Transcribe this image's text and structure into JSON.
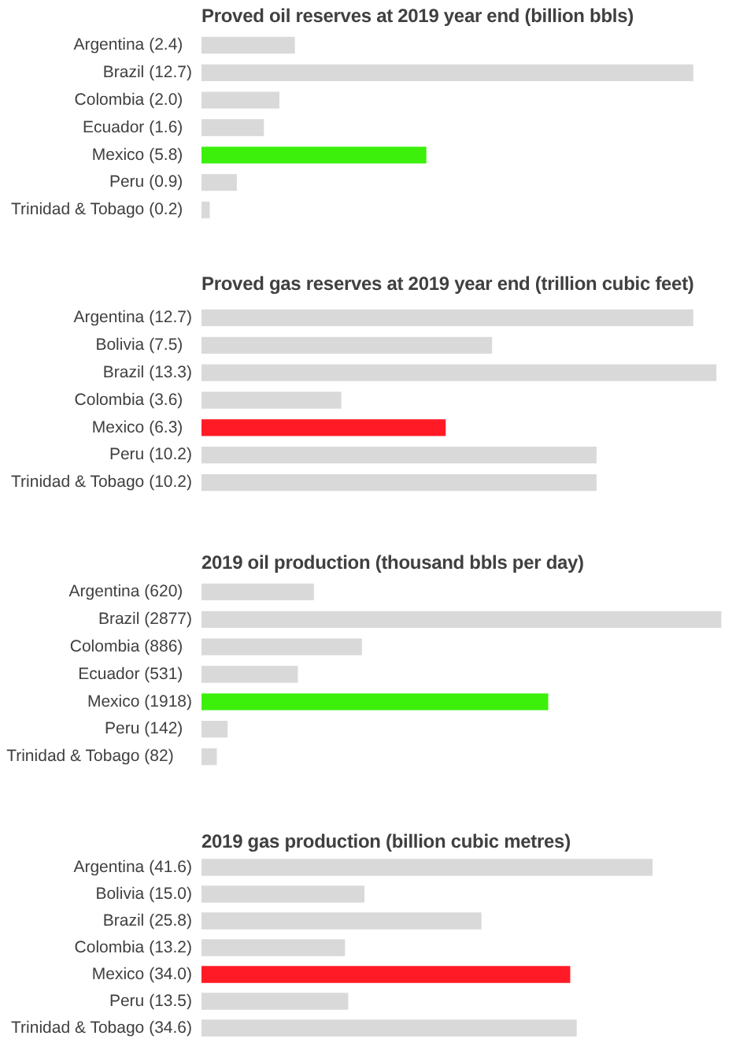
{
  "chart_data": [
    {
      "type": "bar",
      "orientation": "horizontal",
      "title": "Proved oil reserves at 2019 year end (billion bbls)",
      "categories": [
        "Argentina",
        "Brazil",
        "Colombia",
        "Ecuador",
        "Mexico",
        "Peru",
        "Trinidad & Tobago"
      ],
      "values": [
        2.4,
        12.7,
        2.0,
        1.6,
        5.8,
        0.9,
        0.2
      ],
      "value_labels": [
        "(2.4)",
        "(12.7)",
        "(2.0)",
        "(1.6)",
        "(5.8)",
        "(0.9)",
        "(0.2)"
      ],
      "colors": [
        "#d9d9d9",
        "#d9d9d9",
        "#d9d9d9",
        "#d9d9d9",
        "#3cf00c",
        "#d9d9d9",
        "#d9d9d9"
      ],
      "tick_labels": "y"
    },
    {
      "type": "bar",
      "orientation": "horizontal",
      "title": "Proved gas reserves at 2019 year end (trillion cubic feet)",
      "categories": [
        "Argentina",
        "Bolivia",
        "Brazil",
        "Colombia",
        "Mexico",
        "Peru",
        "Trinidad & Tobago"
      ],
      "values": [
        12.7,
        7.5,
        13.3,
        3.6,
        6.3,
        10.2,
        10.2
      ],
      "value_labels": [
        "(12.7)",
        "(7.5)",
        "(13.3)",
        "(3.6)",
        "(6.3)",
        "(10.2)",
        "(10.2)"
      ],
      "colors": [
        "#d9d9d9",
        "#d9d9d9",
        "#d9d9d9",
        "#d9d9d9",
        "#ff1a25",
        "#d9d9d9",
        "#d9d9d9"
      ],
      "tick_labels": "y"
    },
    {
      "type": "bar",
      "orientation": "horizontal",
      "title": "2019 oil production (thousand bbls per day)",
      "categories": [
        "Argentina",
        "Brazil",
        "Colombia",
        "Ecuador",
        "Mexico",
        "Peru",
        "Trinidad & Tobago"
      ],
      "values": [
        620,
        2877,
        886,
        531,
        1918,
        142,
        82
      ],
      "value_labels": [
        "(620)",
        "(2877)",
        "(886)",
        "(531)",
        "(1918)",
        "(142)",
        "(82)"
      ],
      "colors": [
        "#d9d9d9",
        "#d9d9d9",
        "#d9d9d9",
        "#d9d9d9",
        "#3cf00c",
        "#d9d9d9",
        "#d9d9d9"
      ],
      "tick_labels": "y"
    },
    {
      "type": "bar",
      "orientation": "horizontal",
      "title": "2019 gas production (billion cubic metres)",
      "categories": [
        "Argentina",
        "Bolivia",
        "Brazil",
        "Colombia",
        "Mexico",
        "Peru",
        "Trinidad & Tobago"
      ],
      "values": [
        41.6,
        15.0,
        25.8,
        13.2,
        34.0,
        13.5,
        34.6
      ],
      "value_labels": [
        "(41.6)",
        "(15.0)",
        "(25.8)",
        "(13.2)",
        "(34.0)",
        "(13.5)",
        "(34.6)"
      ],
      "colors": [
        "#d9d9d9",
        "#d9d9d9",
        "#d9d9d9",
        "#d9d9d9",
        "#ff1a25",
        "#d9d9d9",
        "#d9d9d9"
      ],
      "tick_labels": "y"
    }
  ]
}
